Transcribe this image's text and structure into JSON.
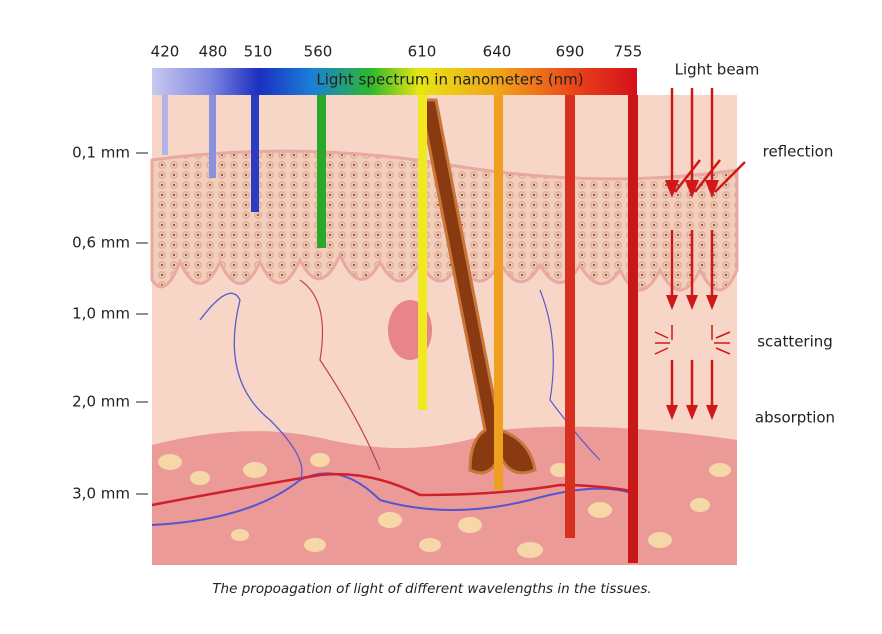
{
  "spectrum_label": "Light spectrum in nanometers (nm)",
  "wavelengths": [
    "420",
    "480",
    "510",
    "560",
    "610",
    "640",
    "690",
    "755"
  ],
  "depths": [
    "0,1 mm",
    "0,6 mm",
    "1,0 mm",
    "2,0 mm",
    "3,0 mm"
  ],
  "annotations": {
    "light_beam": "Light beam",
    "reflection": "reflection",
    "scattering": "scattering",
    "absorption": "absorption"
  },
  "caption": "The propoagation of light of different wavelengths in the tissues."
}
